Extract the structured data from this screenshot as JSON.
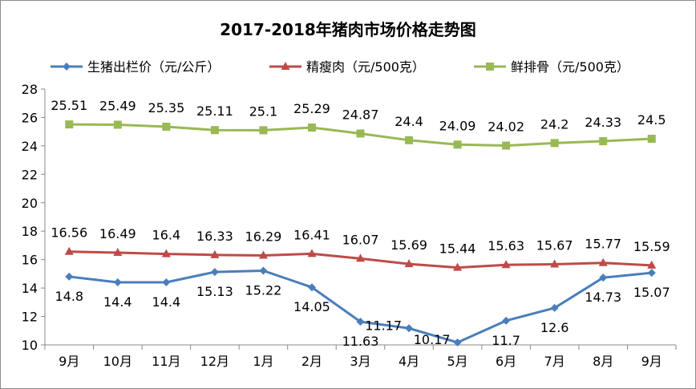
{
  "chart_data": {
    "type": "line",
    "title": "2017-2018年猪肉市场价格走势图",
    "categories": [
      "9月",
      "10月",
      "11月",
      "12月",
      "1月",
      "2月",
      "3月",
      "4月",
      "5月",
      "6月",
      "7月",
      "8月",
      "9月"
    ],
    "ylim": [
      10,
      28
    ],
    "yticks": [
      10,
      12,
      14,
      16,
      18,
      20,
      22,
      24,
      26,
      28
    ],
    "grid": false,
    "legend": "top",
    "series": [
      {
        "name": "生猪出栏价（元/公斤）",
        "color": "#4a7ebb",
        "marker": "diamond",
        "values": [
          14.8,
          14.4,
          14.4,
          15.13,
          15.22,
          14.05,
          11.63,
          11.17,
          10.17,
          11.7,
          12.6,
          14.73,
          15.07
        ],
        "label_pos": "below"
      },
      {
        "name": "精瘦肉（元/500克）",
        "color": "#be4b48",
        "marker": "triangle",
        "values": [
          16.56,
          16.49,
          16.4,
          16.33,
          16.29,
          16.41,
          16.07,
          15.69,
          15.44,
          15.63,
          15.67,
          15.77,
          15.59
        ],
        "label_pos": "above"
      },
      {
        "name": "鲜排骨（元/500克）",
        "color": "#98b954",
        "marker": "square",
        "values": [
          25.51,
          25.49,
          25.35,
          25.11,
          25.1,
          25.29,
          24.87,
          24.4,
          24.09,
          24.02,
          24.2,
          24.33,
          24.5
        ],
        "label_pos": "above"
      }
    ]
  }
}
